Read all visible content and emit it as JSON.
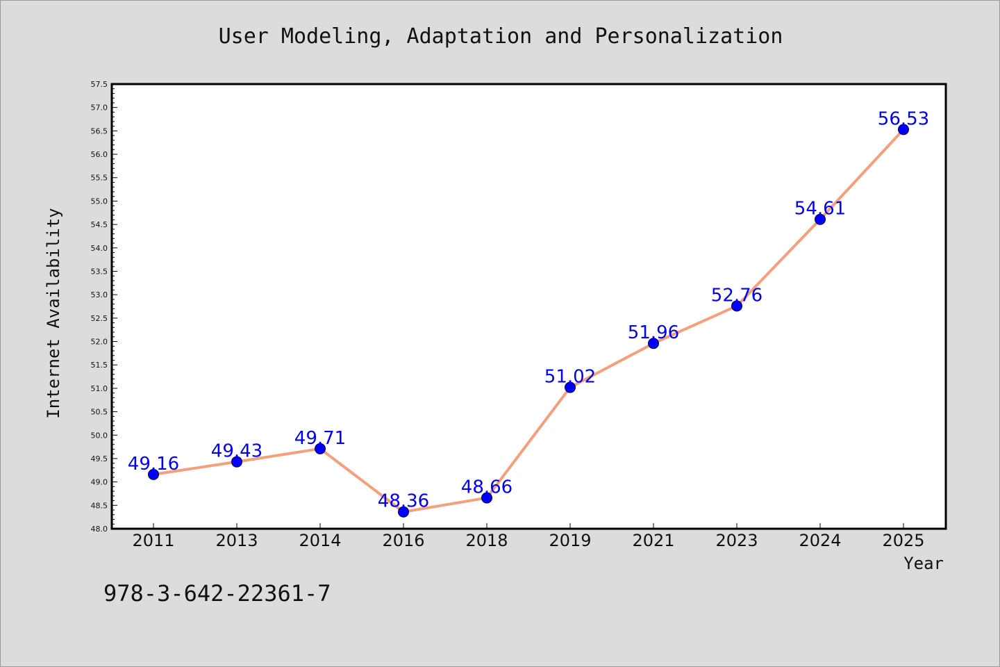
{
  "chart_data": {
    "type": "line",
    "title": "User Modeling, Adaptation and Personalization",
    "xlabel": "Year",
    "ylabel": "Internet Availability",
    "categories": [
      "2011",
      "2013",
      "2014",
      "2016",
      "2018",
      "2019",
      "2021",
      "2023",
      "2024",
      "2025"
    ],
    "series": [
      {
        "values": [
          49.16,
          49.43,
          49.71,
          48.36,
          48.66,
          51.02,
          51.96,
          52.76,
          54.61,
          56.53
        ],
        "labels": [
          "49.16",
          "49.43",
          "49.71",
          "48.36",
          "48.66",
          "51.02",
          "51.96",
          "52.76",
          "54.61",
          "56.53"
        ]
      }
    ],
    "ylim": [
      48.0,
      57.5
    ],
    "yticks": [
      "48.0",
      "48.5",
      "49.0",
      "49.5",
      "50.0",
      "50.5",
      "51.0",
      "51.5",
      "52.0",
      "52.5",
      "53.0",
      "53.5",
      "54.0",
      "54.5",
      "55.0",
      "55.5",
      "56.0",
      "56.5",
      "57.0",
      "57.5"
    ],
    "grid": false,
    "colors": {
      "line": "#f4a07c",
      "marker": "#0000ff",
      "label": "#0000ee",
      "plot_bg": "#ffffff",
      "figure_bg": "#dcdcdc"
    }
  },
  "footer": {
    "isbn": "978-3-642-22361-7"
  }
}
